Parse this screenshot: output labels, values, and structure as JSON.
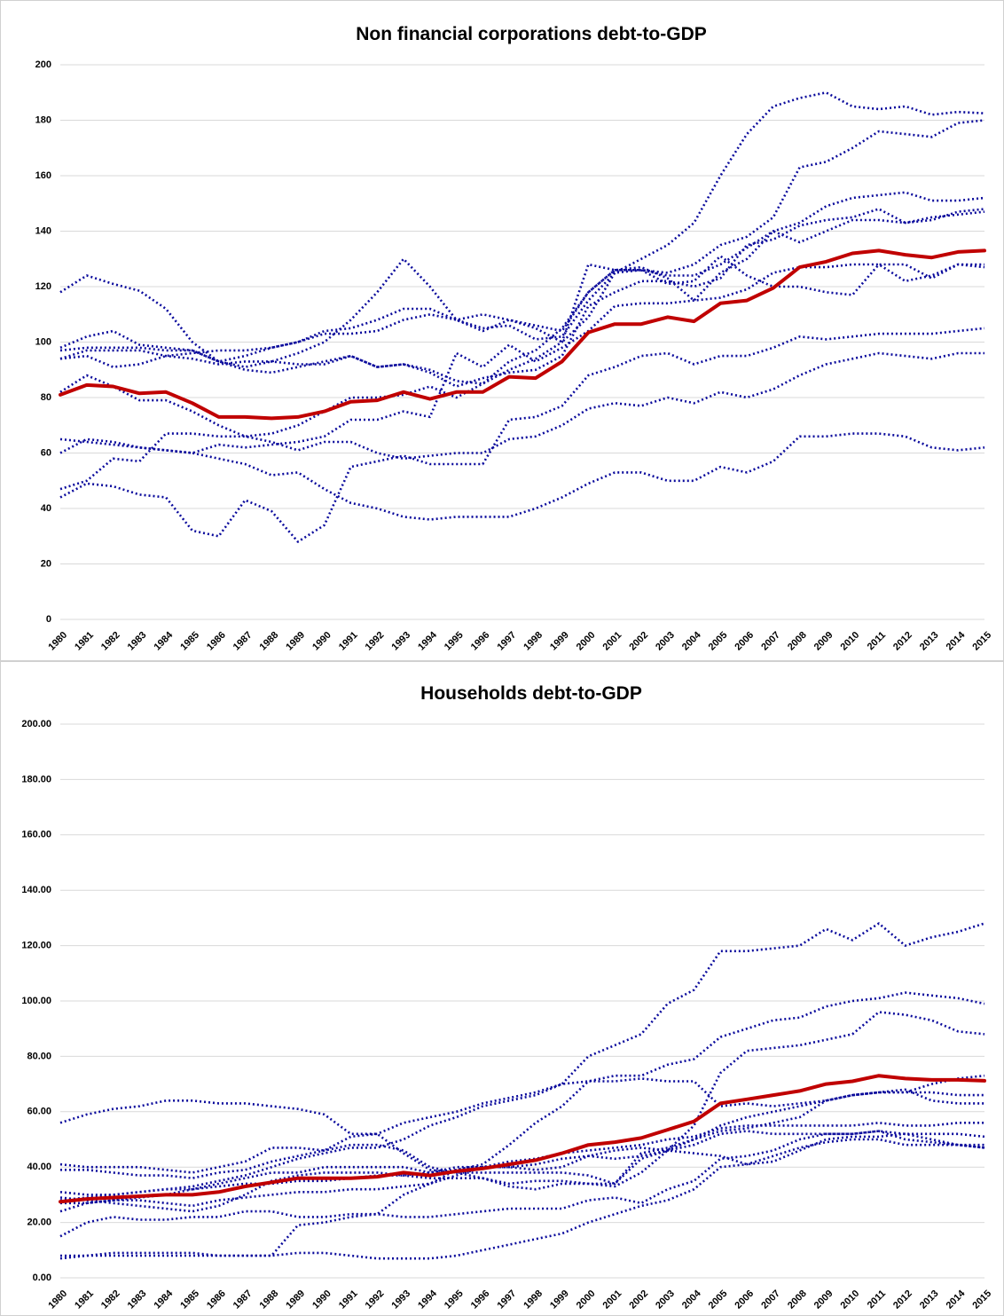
{
  "chart_data": [
    {
      "type": "line",
      "title": "Non financial corporations debt-to-GDP",
      "categories": [
        "1980",
        "1981",
        "1982",
        "1983",
        "1984",
        "1985",
        "1986",
        "1987",
        "1988",
        "1989",
        "1990",
        "1991",
        "1992",
        "1993",
        "1994",
        "1995",
        "1996",
        "1997",
        "1998",
        "1999",
        "2000",
        "2001",
        "2002",
        "2003",
        "2004",
        "2005",
        "2006",
        "2007",
        "2008",
        "2009",
        "2010",
        "2011",
        "2012",
        "2013",
        "2014",
        "2015"
      ],
      "ylim": [
        0,
        200
      ],
      "yticks": [
        0,
        20,
        40,
        60,
        80,
        100,
        120,
        140,
        160,
        180,
        200
      ],
      "grid": true,
      "series": [
        {
          "color": "#0a0a9c",
          "style": "dotted",
          "values": [
            98,
            102,
            104,
            99,
            98,
            97,
            93,
            91,
            93,
            96,
            100,
            108,
            118,
            130,
            120,
            108,
            105,
            106,
            101,
            102,
            115,
            125,
            130,
            135,
            143,
            160,
            175,
            185,
            188,
            190,
            185,
            184,
            185,
            182,
            183,
            182.5
          ]
        },
        {
          "color": "#0a0a9c",
          "style": "dotted",
          "values": [
            94,
            95,
            91,
            92,
            95,
            96,
            97,
            97,
            98,
            100,
            103,
            103,
            104,
            108,
            110,
            108,
            110,
            108,
            105,
            100,
            109,
            125,
            126,
            125,
            128,
            135,
            138,
            145,
            163,
            165,
            170,
            176,
            175,
            174,
            179,
            180
          ]
        },
        {
          "color": "#0a0a9c",
          "style": "dotted",
          "values": [
            97,
            98,
            98,
            98,
            97,
            97,
            93,
            90,
            89,
            91,
            93,
            95,
            91,
            92,
            90,
            86,
            85,
            93,
            97,
            105,
            118,
            126,
            126,
            124,
            124,
            128,
            134,
            140,
            143,
            149,
            152,
            153,
            154,
            151,
            151,
            152
          ]
        },
        {
          "color": "#0a0a9c",
          "style": "dotted",
          "values": [
            94,
            97,
            97,
            97,
            95,
            94,
            92,
            93,
            93,
            92,
            92,
            95,
            91,
            92,
            89,
            84,
            87,
            89,
            90,
            95,
            113,
            118,
            122,
            122,
            120,
            123,
            135,
            137,
            142,
            144,
            145,
            148,
            143,
            144,
            147,
            148
          ]
        },
        {
          "color": "#0a0a9c",
          "style": "dotted",
          "values": [
            82,
            88,
            84,
            79,
            79,
            75,
            70,
            66,
            67,
            70,
            75,
            80,
            80,
            81,
            84,
            80,
            85,
            90,
            94,
            100,
            128,
            126,
            127,
            123,
            115,
            125,
            130,
            140,
            136,
            140,
            144,
            144,
            143,
            145,
            146,
            147
          ]
        },
        {
          "color": "#0a0a9c",
          "style": "dotted",
          "values": [
            118,
            124,
            121,
            118.5,
            112,
            100,
            93,
            95,
            98,
            100,
            104,
            105,
            108,
            112,
            112,
            108,
            104,
            108,
            106,
            104,
            118,
            126,
            126,
            121,
            122,
            131,
            124,
            120,
            120,
            118,
            117,
            128,
            128,
            123,
            128,
            127
          ]
        },
        {
          "color": "#0a0a9c",
          "style": "dotted",
          "values": [
            60,
            65,
            64,
            62,
            61,
            60,
            63,
            62,
            63,
            64,
            66,
            72,
            72,
            75,
            73,
            96,
            91,
            99,
            93,
            98,
            104,
            113,
            114,
            114,
            115,
            116,
            119,
            125,
            127,
            127,
            128,
            128,
            122,
            124,
            128,
            128
          ]
        },
        {
          "color": "#0a0a9c",
          "style": "dotted",
          "values": [
            44,
            49,
            48,
            45,
            44,
            32,
            30,
            43,
            39,
            28,
            34,
            55,
            57,
            59,
            56,
            56,
            56,
            72,
            73,
            77,
            88,
            91,
            95,
            96,
            92,
            95,
            95,
            98,
            102,
            101,
            102,
            103,
            103,
            103,
            104,
            105
          ]
        },
        {
          "color": "#0a0a9c",
          "style": "dotted",
          "values": [
            47,
            50,
            58,
            57,
            67,
            67,
            66,
            66,
            64,
            61,
            64,
            64,
            60,
            58,
            59,
            60,
            60,
            65,
            66,
            70,
            76,
            78,
            77,
            80,
            78,
            82,
            80,
            83,
            88,
            92,
            94,
            96,
            95,
            94,
            96,
            96
          ]
        },
        {
          "color": "#0a0a9c",
          "style": "dotted",
          "values": [
            65,
            64,
            63,
            62,
            61,
            60,
            58,
            56,
            52,
            53,
            47,
            42,
            40,
            37,
            36,
            37,
            37,
            37,
            40,
            44,
            49,
            53,
            53,
            50,
            50,
            55,
            53,
            57,
            66,
            66,
            67,
            67,
            66,
            62,
            61,
            62
          ]
        },
        {
          "color": "#c00000",
          "style": "solid",
          "values": [
            81,
            84.5,
            84,
            81.5,
            82,
            78,
            73,
            73,
            72.5,
            73,
            75,
            78.5,
            79,
            82,
            79.5,
            82,
            82,
            87.5,
            87,
            93,
            103.5,
            106.5,
            106.5,
            109,
            107.5,
            114,
            115,
            119.5,
            127,
            129,
            132,
            133,
            131.5,
            130.5,
            132.5,
            133
          ]
        }
      ]
    },
    {
      "type": "line",
      "title": "Households debt-to-GDP",
      "categories": [
        "1980",
        "1981",
        "1982",
        "1983",
        "1984",
        "1985",
        "1986",
        "1987",
        "1988",
        "1989",
        "1990",
        "1991",
        "1992",
        "1993",
        "1994",
        "1995",
        "1996",
        "1997",
        "1998",
        "1999",
        "2000",
        "2001",
        "2002",
        "2003",
        "2004",
        "2005",
        "2006",
        "2007",
        "2008",
        "2009",
        "2010",
        "2011",
        "2012",
        "2013",
        "2014",
        "2015"
      ],
      "ylim": [
        0,
        200
      ],
      "yticks": [
        {
          "value": 0,
          "label": "0.00"
        },
        {
          "value": 20,
          "label": "20.00"
        },
        {
          "value": 40,
          "label": "40.00"
        },
        {
          "value": 60,
          "label": "60.00"
        },
        {
          "value": 80,
          "label": "80.00"
        },
        {
          "value": 100,
          "label": "100.00"
        },
        {
          "value": 120,
          "label": "120.00"
        },
        {
          "value": 140,
          "label": "140.00"
        },
        {
          "value": 160,
          "label": "160.00"
        },
        {
          "value": 180,
          "label": "180.00"
        },
        {
          "value": 200,
          "label": "200.00"
        }
      ],
      "grid": true,
      "series": [
        {
          "color": "#0a0a9c",
          "style": "dotted",
          "values": [
            31,
            30,
            30,
            31,
            32,
            33,
            35,
            37,
            40,
            43,
            45,
            47,
            47,
            50,
            55,
            58,
            62,
            64,
            66,
            70,
            80,
            84,
            88,
            99,
            104,
            118,
            118,
            119,
            120,
            126,
            122,
            128,
            120,
            123,
            125,
            128
          ]
        },
        {
          "color": "#0a0a9c",
          "style": "dotted",
          "values": [
            41,
            40,
            40,
            40,
            39,
            38,
            40,
            42,
            47,
            47,
            46,
            51,
            52,
            56,
            58,
            60,
            63,
            65,
            67,
            70,
            71,
            73,
            73,
            77,
            79,
            87,
            90,
            93,
            94,
            98,
            100,
            101,
            103,
            102,
            101,
            99
          ]
        },
        {
          "color": "#0a0a9c",
          "style": "dotted",
          "values": [
            56,
            59,
            61,
            62,
            64,
            64,
            63,
            63,
            62,
            61,
            59,
            52,
            52,
            45,
            39,
            38,
            36,
            34,
            35,
            35,
            34,
            33,
            38,
            46,
            55,
            74,
            82,
            83,
            84,
            86,
            88,
            96,
            95,
            93,
            89,
            88
          ]
        },
        {
          "color": "#0a0a9c",
          "style": "dotted",
          "values": [
            8,
            8,
            8,
            8,
            8,
            8,
            8,
            8,
            8,
            19,
            20,
            22,
            23,
            30,
            34,
            39,
            41,
            48,
            56,
            62,
            71,
            71,
            72,
            71,
            71,
            62,
            63,
            62,
            63,
            64,
            66,
            67,
            67,
            70,
            72,
            73
          ]
        },
        {
          "color": "#0a0a9c",
          "style": "dotted",
          "values": [
            39,
            39,
            38,
            37,
            37,
            36,
            38,
            39,
            42,
            44,
            46,
            48,
            48,
            46,
            40,
            38,
            38,
            38,
            38,
            38,
            37,
            34,
            43,
            46,
            50,
            55,
            58,
            60,
            62,
            64,
            66,
            67,
            67,
            67,
            66,
            66
          ]
        },
        {
          "color": "#0a0a9c",
          "style": "dotted",
          "values": [
            29,
            28,
            27,
            26,
            25,
            24,
            26,
            30,
            35,
            37,
            38,
            38,
            38,
            37,
            36,
            36,
            36,
            33,
            32,
            34,
            34,
            34,
            45,
            47,
            50,
            53,
            54,
            56,
            58,
            64,
            66,
            67,
            68,
            64,
            63,
            63
          ]
        },
        {
          "color": "#0a0a9c",
          "style": "dotted",
          "values": [
            24,
            27,
            28,
            29,
            30,
            32,
            34,
            36,
            38,
            38,
            40,
            40,
            40,
            40,
            38,
            39,
            40,
            42,
            43,
            45,
            46,
            47,
            48,
            50,
            51,
            54,
            55,
            55,
            55,
            55,
            55,
            56,
            55,
            55,
            56,
            56
          ]
        },
        {
          "color": "#0a0a9c",
          "style": "dotted",
          "values": [
            28,
            29,
            30,
            31,
            32,
            32,
            33,
            34,
            34,
            35,
            35,
            36,
            37,
            37,
            38,
            40,
            40,
            40,
            39,
            40,
            44,
            43,
            44,
            46,
            48,
            52,
            53,
            52,
            52,
            52,
            52,
            53,
            52,
            52,
            52,
            51
          ]
        },
        {
          "color": "#0a0a9c",
          "style": "dotted",
          "values": [
            27,
            27,
            28,
            28,
            27,
            26,
            28,
            29,
            30,
            31,
            31,
            32,
            32,
            33,
            34,
            37,
            40,
            40,
            41,
            43,
            44,
            46,
            47,
            46,
            45,
            44,
            41,
            42,
            46,
            50,
            51,
            51,
            52,
            50,
            48,
            48
          ]
        },
        {
          "color": "#0a0a9c",
          "style": "dotted",
          "values": [
            15,
            20,
            22,
            21,
            21,
            22,
            22,
            24,
            24,
            22,
            22,
            23,
            23,
            22,
            22,
            23,
            24,
            25,
            25,
            25,
            28,
            29,
            27,
            32,
            35,
            43,
            44,
            46,
            50,
            52,
            52,
            53,
            50,
            49,
            48,
            47
          ]
        },
        {
          "color": "#0a0a9c",
          "style": "dotted",
          "values": [
            7,
            8,
            9,
            9,
            9,
            9,
            8,
            8,
            8,
            9,
            9,
            8,
            7,
            7,
            7,
            8,
            10,
            12,
            14,
            16,
            20,
            23,
            26,
            28,
            32,
            40,
            41,
            44,
            47,
            49,
            50,
            50,
            48,
            48,
            48,
            47
          ]
        },
        {
          "color": "#c00000",
          "style": "solid",
          "values": [
            27.5,
            28.5,
            29,
            29.5,
            30,
            30,
            31,
            33,
            34.5,
            36,
            36,
            36,
            36.5,
            38,
            37,
            38.5,
            39.5,
            41,
            42.5,
            45,
            48,
            49,
            50.5,
            53.5,
            56.5,
            63,
            64.5,
            66,
            67.5,
            70,
            71,
            73,
            72,
            71.5,
            71.5,
            71.2
          ]
        }
      ]
    }
  ]
}
